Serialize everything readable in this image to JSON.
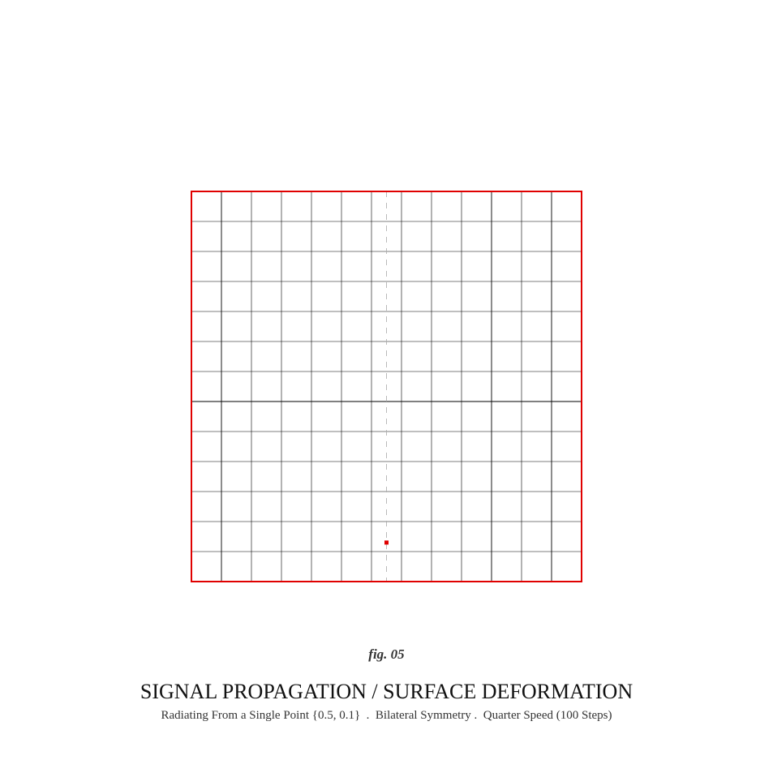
{
  "figure": {
    "label": "fig. 05",
    "title": "SIGNAL PROPAGATION / SURFACE DEFORMATION",
    "subtitle": "Radiating From a Single Point {0.5, 0.1}  .  Bilateral Symmetry .  Quarter Speed (100 Steps)"
  },
  "grid": {
    "columns": 13,
    "rows": 13,
    "border_color": "#e00000",
    "line_color": "#000000",
    "symmetry_axis_color": "#aaaaaa",
    "source_point": [
      0.5,
      0.1
    ],
    "source_color": "#e00000"
  }
}
